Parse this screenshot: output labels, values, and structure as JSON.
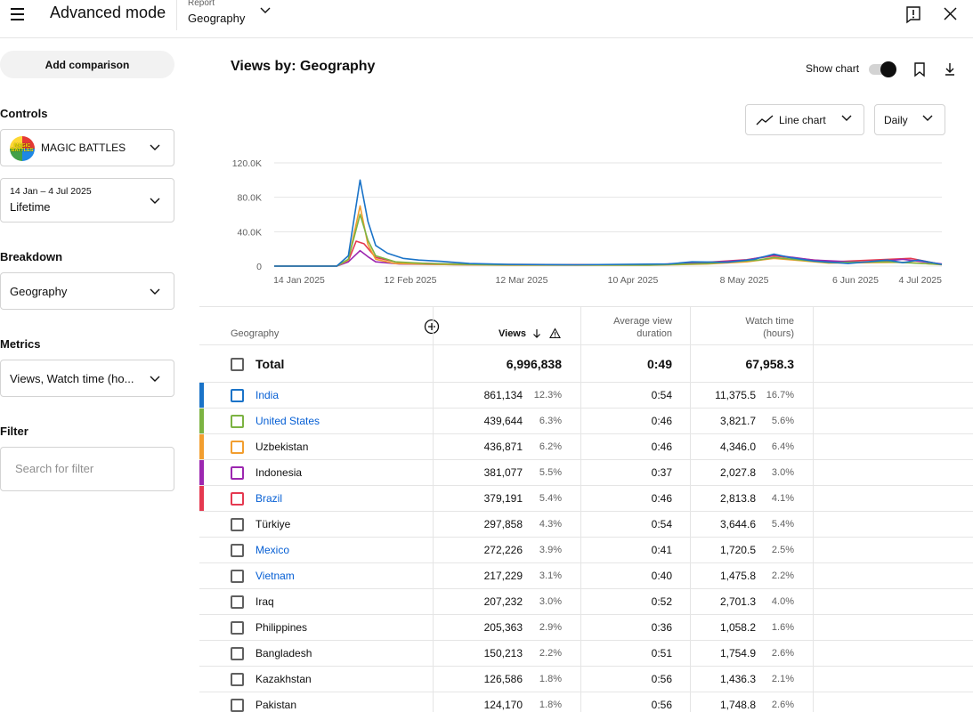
{
  "header": {
    "title": "Advanced mode",
    "report_label": "Report",
    "report_value": "Geography",
    "feedback_icon": "feedback-icon",
    "close_icon": "close-icon"
  },
  "sidebar": {
    "add_comparison": "Add comparison",
    "controls_heading": "Controls",
    "channel_name": "MAGIC BATTLES",
    "channel_logo_text": "MAGIC BATTLES",
    "date_range": "14 Jan – 4 Jul 2025",
    "date_preset": "Lifetime",
    "breakdown_heading": "Breakdown",
    "breakdown_value": "Geography",
    "metrics_heading": "Metrics",
    "metrics_value": "Views, Watch time (ho...",
    "filter_heading": "Filter",
    "filter_placeholder": "Search for filter"
  },
  "main": {
    "title": "Views by: Geography",
    "show_chart_label": "Show chart",
    "show_chart_on": true,
    "chart_type_label": "Line chart",
    "interval_label": "Daily"
  },
  "chart_data": {
    "type": "line",
    "title": "",
    "xlabel": "",
    "ylabel": "",
    "ylim": [
      0,
      120000
    ],
    "y_ticks": [
      "120.0K",
      "80.0K",
      "40.0K",
      "0"
    ],
    "y_tick_values": [
      120000,
      80000,
      40000,
      0
    ],
    "x_ticks": [
      "14 Jan 2025",
      "12 Feb 2025",
      "12 Mar 2025",
      "10 Apr 2025",
      "8 May 2025",
      "6 Jun 2025",
      "4 Jul 2025"
    ],
    "x_range": [
      "2025-01-14",
      "2025-07-04"
    ],
    "grid": true,
    "series": [
      {
        "name": "India",
        "color": "#1a73c8",
        "points": [
          [
            "2025-01-14",
            0
          ],
          [
            "2025-01-30",
            0
          ],
          [
            "2025-02-02",
            12000
          ],
          [
            "2025-02-05",
            100000
          ],
          [
            "2025-02-07",
            52000
          ],
          [
            "2025-02-09",
            24000
          ],
          [
            "2025-02-12",
            15000
          ],
          [
            "2025-02-16",
            9000
          ],
          [
            "2025-02-20",
            7000
          ],
          [
            "2025-02-26",
            5500
          ],
          [
            "2025-03-05",
            3000
          ],
          [
            "2025-03-15",
            2000
          ],
          [
            "2025-04-01",
            1500
          ],
          [
            "2025-04-25",
            2500
          ],
          [
            "2025-05-01",
            5000
          ],
          [
            "2025-05-10",
            4500
          ],
          [
            "2025-05-17",
            8000
          ],
          [
            "2025-05-22",
            14000
          ],
          [
            "2025-05-26",
            10000
          ],
          [
            "2025-06-01",
            6000
          ],
          [
            "2025-06-10",
            3000
          ],
          [
            "2025-06-20",
            7000
          ],
          [
            "2025-06-24",
            4000
          ],
          [
            "2025-06-28",
            7000
          ],
          [
            "2025-07-04",
            2000
          ]
        ]
      },
      {
        "name": "United States",
        "color": "#7cb342",
        "points": [
          [
            "2025-01-14",
            0
          ],
          [
            "2025-01-30",
            0
          ],
          [
            "2025-02-02",
            8000
          ],
          [
            "2025-02-05",
            60000
          ],
          [
            "2025-02-07",
            30000
          ],
          [
            "2025-02-09",
            12000
          ],
          [
            "2025-02-14",
            5000
          ],
          [
            "2025-02-22",
            3000
          ],
          [
            "2025-03-10",
            1500
          ],
          [
            "2025-04-20",
            1200
          ],
          [
            "2025-05-05",
            3000
          ],
          [
            "2025-05-18",
            7000
          ],
          [
            "2025-05-22",
            10000
          ],
          [
            "2025-06-05",
            4000
          ],
          [
            "2025-06-20",
            5000
          ],
          [
            "2025-07-04",
            2000
          ]
        ]
      },
      {
        "name": "Uzbekistan",
        "color": "#f29e2f",
        "points": [
          [
            "2025-01-14",
            0
          ],
          [
            "2025-01-30",
            0
          ],
          [
            "2025-02-02",
            7000
          ],
          [
            "2025-02-05",
            70000
          ],
          [
            "2025-02-07",
            25000
          ],
          [
            "2025-02-09",
            8000
          ],
          [
            "2025-02-14",
            3000
          ],
          [
            "2025-02-25",
            2000
          ],
          [
            "2025-03-15",
            1000
          ],
          [
            "2025-04-20",
            1000
          ],
          [
            "2025-05-05",
            2500
          ],
          [
            "2025-05-15",
            5000
          ],
          [
            "2025-05-22",
            9000
          ],
          [
            "2025-06-05",
            3500
          ],
          [
            "2025-06-25",
            4500
          ],
          [
            "2025-07-04",
            1500
          ]
        ]
      },
      {
        "name": "Indonesia",
        "color": "#9c27b0",
        "points": [
          [
            "2025-01-14",
            0
          ],
          [
            "2025-01-30",
            0
          ],
          [
            "2025-02-02",
            5000
          ],
          [
            "2025-02-05",
            18000
          ],
          [
            "2025-02-07",
            11000
          ],
          [
            "2025-02-09",
            5000
          ],
          [
            "2025-02-15",
            2500
          ],
          [
            "2025-03-05",
            1500
          ],
          [
            "2025-04-20",
            1500
          ],
          [
            "2025-05-05",
            4000
          ],
          [
            "2025-05-15",
            7000
          ],
          [
            "2025-05-22",
            13000
          ],
          [
            "2025-06-01",
            7000
          ],
          [
            "2025-06-15",
            4000
          ],
          [
            "2025-06-24",
            8000
          ],
          [
            "2025-07-04",
            2500
          ]
        ]
      },
      {
        "name": "Brazil",
        "color": "#e53950",
        "points": [
          [
            "2025-01-14",
            0
          ],
          [
            "2025-01-30",
            0
          ],
          [
            "2025-02-02",
            6000
          ],
          [
            "2025-02-04",
            29000
          ],
          [
            "2025-02-06",
            26000
          ],
          [
            "2025-02-09",
            10000
          ],
          [
            "2025-02-15",
            4000
          ],
          [
            "2025-03-05",
            2000
          ],
          [
            "2025-04-20",
            1500
          ],
          [
            "2025-05-05",
            4500
          ],
          [
            "2025-05-15",
            7500
          ],
          [
            "2025-05-22",
            12000
          ],
          [
            "2025-05-28",
            9000
          ],
          [
            "2025-06-06",
            5000
          ],
          [
            "2025-06-26",
            9000
          ],
          [
            "2025-07-04",
            2000
          ]
        ]
      }
    ]
  },
  "table": {
    "col_geography": "Geography",
    "col_views": "Views",
    "col_avd_line1": "Average view",
    "col_avd_line2": "duration",
    "col_wt_line1": "Watch time",
    "col_wt_line2": "(hours)",
    "total": {
      "label": "Total",
      "views": "6,996,838",
      "avd": "0:49",
      "watch": "67,958.3"
    },
    "rows": [
      {
        "name": "India",
        "link": true,
        "color": "#1a73c8",
        "checked_color": true,
        "views": "861,134",
        "views_pct": "12.3%",
        "avd": "0:54",
        "watch": "11,375.5",
        "watch_pct": "16.7%"
      },
      {
        "name": "United States",
        "link": true,
        "color": "#7cb342",
        "checked_color": true,
        "views": "439,644",
        "views_pct": "6.3%",
        "avd": "0:46",
        "watch": "3,821.7",
        "watch_pct": "5.6%"
      },
      {
        "name": "Uzbekistan",
        "link": false,
        "color": "#f29e2f",
        "checked_color": true,
        "views": "436,871",
        "views_pct": "6.2%",
        "avd": "0:46",
        "watch": "4,346.0",
        "watch_pct": "6.4%"
      },
      {
        "name": "Indonesia",
        "link": false,
        "color": "#9c27b0",
        "checked_color": true,
        "views": "381,077",
        "views_pct": "5.5%",
        "avd": "0:37",
        "watch": "2,027.8",
        "watch_pct": "3.0%"
      },
      {
        "name": "Brazil",
        "link": true,
        "color": "#e53950",
        "checked_color": true,
        "views": "379,191",
        "views_pct": "5.4%",
        "avd": "0:46",
        "watch": "2,813.8",
        "watch_pct": "4.1%"
      },
      {
        "name": "Türkiye",
        "link": false,
        "color": "",
        "checked_color": false,
        "views": "297,858",
        "views_pct": "4.3%",
        "avd": "0:54",
        "watch": "3,644.6",
        "watch_pct": "5.4%"
      },
      {
        "name": "Mexico",
        "link": true,
        "color": "",
        "checked_color": false,
        "views": "272,226",
        "views_pct": "3.9%",
        "avd": "0:41",
        "watch": "1,720.5",
        "watch_pct": "2.5%"
      },
      {
        "name": "Vietnam",
        "link": true,
        "color": "",
        "checked_color": false,
        "views": "217,229",
        "views_pct": "3.1%",
        "avd": "0:40",
        "watch": "1,475.8",
        "watch_pct": "2.2%"
      },
      {
        "name": "Iraq",
        "link": false,
        "color": "",
        "checked_color": false,
        "views": "207,232",
        "views_pct": "3.0%",
        "avd": "0:52",
        "watch": "2,701.3",
        "watch_pct": "4.0%"
      },
      {
        "name": "Philippines",
        "link": false,
        "color": "",
        "checked_color": false,
        "views": "205,363",
        "views_pct": "2.9%",
        "avd": "0:36",
        "watch": "1,058.2",
        "watch_pct": "1.6%"
      },
      {
        "name": "Bangladesh",
        "link": false,
        "color": "",
        "checked_color": false,
        "views": "150,213",
        "views_pct": "2.2%",
        "avd": "0:51",
        "watch": "1,754.9",
        "watch_pct": "2.6%"
      },
      {
        "name": "Kazakhstan",
        "link": false,
        "color": "",
        "checked_color": false,
        "views": "126,586",
        "views_pct": "1.8%",
        "avd": "0:56",
        "watch": "1,436.3",
        "watch_pct": "2.1%"
      },
      {
        "name": "Pakistan",
        "link": false,
        "color": "",
        "checked_color": false,
        "views": "124,170",
        "views_pct": "1.8%",
        "avd": "0:56",
        "watch": "1,748.8",
        "watch_pct": "2.6%"
      }
    ]
  }
}
